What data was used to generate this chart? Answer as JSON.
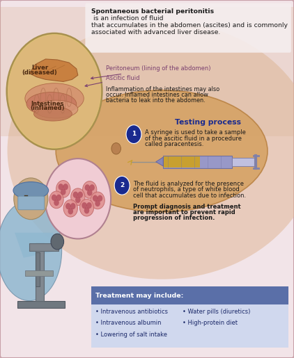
{
  "title_bold": "Spontaneous bacterial peritonitis",
  "title_rest1": " is an infection of fluid",
  "title_rest2": "that accumulates in the abdomen (ascites) and is commonly",
  "title_rest3": "associated with advanced liver disease.",
  "bg_color": "#f2e4e8",
  "border_color": "#c8a0a8",
  "label_color": "#7a4070",
  "heading_color": "#1a2a8f",
  "dark_text": "#1a1a1a",
  "liver_label1": "Liver",
  "liver_label2": "(diseased)",
  "intestines_label1": "Intestines",
  "intestines_label2": "(inflamed)",
  "peritoneum_label": "Peritoneum (lining of the abdomen)",
  "ascitic_label": "Ascitic fluid",
  "inflam_text1": "Inflammation of the intestines may also",
  "inflam_text2": "occur. Inflamed intestines can allow",
  "inflam_text3": "bacteria to leak into the abdomen.",
  "testing_heading": "Testing process",
  "step1_text1": "A syringe is used to take a sample",
  "step1_text2": "of the ascitic fluid in a procedure",
  "step1_text3": "called paracentesis.",
  "step2_text1": "The fluid is analyzed for the presence",
  "step2_text2": "of neutrophils, a type of white blood",
  "step2_text3": "cell that accumulates due to infection.",
  "prompt_text1": "Prompt diagnosis and treatment",
  "prompt_text2": "are important to prevent rapid",
  "prompt_text3": "progression of infection.",
  "treatment_header": "Treatment may include:",
  "treatment_header_bg": "#5a6fa8",
  "treatment_bg": "#d0d8ee",
  "treatment_items_left": [
    "• Intravenous antibiotics",
    "• Intravenous albumin",
    "• Lowering of salt intake"
  ],
  "treatment_items_right": [
    "• Water pills (diuretics)",
    "• High-protein diet"
  ],
  "fig_width": 4.22,
  "fig_height": 5.15,
  "dpi": 100
}
